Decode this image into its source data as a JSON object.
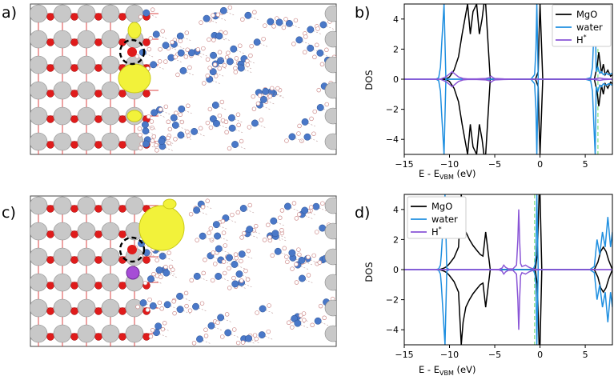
{
  "panels": [
    {
      "label": "a)"
    },
    {
      "label": "b)"
    },
    {
      "label": "c)"
    },
    {
      "label": "d)"
    }
  ],
  "chart_data": [
    {
      "type": "line",
      "panel": "b)",
      "xlabel_main": "E - E",
      "xlabel_sub": "VBM",
      "xlabel_unit": " (eV)",
      "ylabel": "DOS",
      "xlim": [
        -15,
        8
      ],
      "ylim": [
        -5,
        5
      ],
      "xticks": [
        -15,
        -10,
        -5,
        0,
        5
      ],
      "yticks": [
        -4,
        -2,
        0,
        2,
        4
      ],
      "grid": false,
      "legend_position": "top-right",
      "marker_line": {
        "x": 6.4,
        "color": "#7ee07e",
        "style": "dashed"
      },
      "series": [
        {
          "name": "MgO",
          "color": "#000000",
          "x": [
            -11.0,
            -10.7,
            -10.5,
            -10.3,
            -10.0,
            -9.5,
            -9.0,
            -8.6,
            -8.3,
            -8.0,
            -7.7,
            -7.4,
            -7.0,
            -6.7,
            -6.4,
            -6.2,
            -6.0,
            -5.5,
            -5.0,
            -3.0,
            -1.0,
            -0.5,
            -0.2,
            -0.1,
            0.0,
            0.3,
            1.0,
            3.0,
            5.5,
            6.0,
            6.3,
            6.5,
            6.8,
            7.0,
            7.2,
            7.5,
            7.8,
            8.0
          ],
          "y": [
            0.0,
            0.0,
            0.02,
            0.05,
            0.15,
            0.6,
            1.5,
            3.0,
            4.0,
            5.0,
            3.0,
            4.5,
            5.0,
            3.0,
            4.0,
            5.0,
            5.0,
            0.0,
            0.0,
            0.0,
            0.0,
            0.0,
            0.5,
            3.0,
            5.0,
            0.0,
            0.0,
            0.0,
            0.0,
            0.0,
            0.8,
            1.8,
            0.4,
            1.0,
            0.3,
            0.6,
            0.2,
            0.3
          ]
        },
        {
          "name": "water",
          "color": "#1f8fe0",
          "x": [
            -15.0,
            -11.5,
            -11.2,
            -11.0,
            -10.85,
            -10.7,
            -10.6,
            -10.4,
            -10.0,
            -9.0,
            -8.0,
            -3.0,
            -1.0,
            -0.6,
            -0.45,
            -0.35,
            -0.2,
            0.0,
            2.0,
            5.0,
            5.6,
            5.8,
            5.95,
            6.1,
            6.2,
            6.4,
            6.6,
            6.8,
            7.0,
            7.3,
            7.6,
            8.0
          ],
          "y": [
            0.0,
            0.0,
            0.1,
            0.8,
            2.5,
            4.0,
            5.0,
            0.0,
            0.0,
            0.0,
            0.0,
            0.0,
            0.0,
            0.3,
            2.0,
            5.0,
            0.0,
            0.0,
            0.0,
            0.0,
            0.1,
            0.8,
            3.0,
            5.0,
            0.5,
            0.8,
            0.4,
            0.5,
            0.3,
            0.4,
            0.3,
            0.4
          ]
        },
        {
          "name": "H*",
          "color": "#8a55d6",
          "x": [
            -15.0,
            -11.0,
            -10.6,
            -10.3,
            -10.0,
            -9.7,
            -9.3,
            -9.0,
            -8.5,
            -8.0,
            -7.0,
            -6.0,
            -5.6,
            -5.4,
            -5.2,
            -5.0,
            -4.0,
            -2.0,
            -1.0,
            -0.4,
            0.0,
            0.5,
            2.0,
            4.0,
            5.5,
            6.0,
            6.3,
            6.6,
            7.0,
            8.0
          ],
          "y": [
            0.0,
            0.0,
            0.1,
            0.2,
            0.35,
            0.5,
            0.3,
            0.15,
            0.05,
            0.02,
            0.02,
            0.05,
            0.1,
            0.2,
            0.1,
            0.05,
            0.02,
            0.0,
            0.0,
            0.0,
            0.0,
            0.0,
            0.0,
            0.0,
            0.0,
            0.02,
            0.05,
            0.08,
            0.03,
            0.0
          ]
        }
      ]
    },
    {
      "type": "line",
      "panel": "d)",
      "xlabel_main": "E - E",
      "xlabel_sub": "VBM",
      "xlabel_unit": " (eV)",
      "ylabel": "DOS",
      "xlim": [
        -15,
        8
      ],
      "ylim": [
        -5,
        5
      ],
      "xticks": [
        -15,
        -10,
        -5,
        0,
        5
      ],
      "yticks": [
        -4,
        -2,
        0,
        2,
        4
      ],
      "grid": false,
      "legend_position": "top-left",
      "marker_line": {
        "x": -0.6,
        "color": "#7ee07e",
        "style": "dashed"
      },
      "series": [
        {
          "name": "MgO",
          "color": "#000000",
          "x": [
            -11.5,
            -11.0,
            -10.6,
            -10.3,
            -10.0,
            -9.5,
            -9.0,
            -8.7,
            -8.5,
            -8.2,
            -7.8,
            -7.4,
            -7.0,
            -6.6,
            -6.3,
            -6.0,
            -5.5,
            -4.0,
            -2.0,
            -0.8,
            -0.5,
            -0.3,
            -0.1,
            0.0,
            0.2,
            1.0,
            3.0,
            6.0,
            6.4,
            6.7,
            7.0,
            7.3,
            7.6,
            8.0
          ],
          "y": [
            0.0,
            0.02,
            0.1,
            0.2,
            0.4,
            0.8,
            1.5,
            5.0,
            3.5,
            2.5,
            2.0,
            1.6,
            1.3,
            1.0,
            0.9,
            2.5,
            0.0,
            0.0,
            0.0,
            0.0,
            0.1,
            1.0,
            5.0,
            5.0,
            0.0,
            0.0,
            0.0,
            0.0,
            0.5,
            1.2,
            1.5,
            1.2,
            0.6,
            0.0
          ]
        },
        {
          "name": "water",
          "color": "#1f8fe0",
          "x": [
            -15.0,
            -11.5,
            -11.2,
            -11.0,
            -10.9,
            -10.7,
            -10.5,
            -10.3,
            -10.0,
            -8.0,
            -3.0,
            -1.0,
            -0.7,
            -0.55,
            -0.45,
            -0.35,
            -0.2,
            0.0,
            2.0,
            5.5,
            6.0,
            6.3,
            6.6,
            6.9,
            7.2,
            7.5,
            7.8,
            8.0
          ],
          "y": [
            0.0,
            0.0,
            0.05,
            0.3,
            1.0,
            3.0,
            5.0,
            0.1,
            0.0,
            0.0,
            0.0,
            0.0,
            0.1,
            0.3,
            1.0,
            5.0,
            0.0,
            0.0,
            0.0,
            0.0,
            0.2,
            2.0,
            1.0,
            2.5,
            1.5,
            3.5,
            1.5,
            2.5
          ]
        },
        {
          "name": "H*",
          "color": "#8a55d6",
          "x": [
            -15.0,
            -10.0,
            -6.0,
            -4.5,
            -4.2,
            -4.0,
            -3.8,
            -3.5,
            -3.0,
            -2.6,
            -2.45,
            -2.35,
            -2.25,
            -2.15,
            -2.0,
            -1.6,
            -1.2,
            -0.8,
            0.0,
            3.0,
            6.0,
            8.0
          ],
          "y": [
            0.0,
            0.0,
            0.0,
            0.02,
            0.1,
            0.3,
            0.15,
            0.05,
            0.05,
            0.3,
            2.0,
            4.0,
            2.0,
            0.4,
            0.2,
            0.3,
            0.15,
            0.05,
            0.0,
            0.0,
            0.0,
            0.0
          ]
        }
      ]
    }
  ]
}
